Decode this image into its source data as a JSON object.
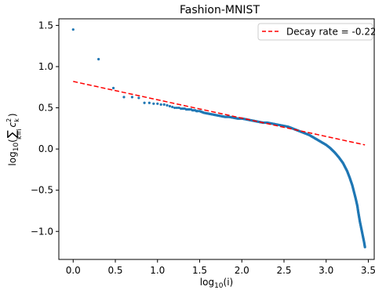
{
  "chart_data": {
    "type": "scatter",
    "title": "Fashion-MNIST",
    "xlabel_base": "log",
    "xlabel_sub": "10",
    "xlabel_arg": "(i)",
    "ylabel_base": "log",
    "ylabel_sub": "10",
    "ylabel_sum_range": "k=i",
    "ylabel_var": "c",
    "ylabel_sup": "2",
    "ylabel_var_sub": "k",
    "xlim": [
      -0.17,
      3.57
    ],
    "ylim": [
      -1.34,
      1.58
    ],
    "xticks": [
      "0.0",
      "0.5",
      "1.0",
      "1.5",
      "2.0",
      "2.5",
      "3.0",
      "3.5"
    ],
    "yticks": [
      "−1.0",
      "−0.5",
      "0.0",
      "0.5",
      "1.0",
      "1.5"
    ],
    "grid": false,
    "legend_position": "upper right",
    "series": [
      {
        "label": "Decay rate = -0.22",
        "kind": "line",
        "style": "dashed",
        "color": "#ff0000",
        "x": [
          0,
          3.46
        ],
        "y": [
          0.82,
          0.05
        ]
      }
    ],
    "scatter": {
      "color": "#1f77b4",
      "points": [
        [
          0.0,
          1.45
        ],
        [
          0.301,
          1.09
        ],
        [
          0.477,
          0.74
        ],
        [
          0.602,
          0.63
        ],
        [
          0.699,
          0.63
        ],
        [
          0.778,
          0.62
        ],
        [
          0.845,
          0.56
        ],
        [
          0.903,
          0.56
        ],
        [
          0.954,
          0.55
        ],
        [
          1.0,
          0.55
        ],
        [
          1.041,
          0.54
        ],
        [
          1.079,
          0.54
        ],
        [
          1.114,
          0.53
        ],
        [
          1.146,
          0.52
        ],
        [
          1.176,
          0.51
        ],
        [
          1.204,
          0.5
        ],
        [
          1.23,
          0.5
        ],
        [
          1.255,
          0.5
        ],
        [
          1.279,
          0.49
        ],
        [
          1.301,
          0.49
        ],
        [
          1.322,
          0.49
        ],
        [
          1.342,
          0.48
        ],
        [
          1.362,
          0.48
        ],
        [
          1.38,
          0.48
        ],
        [
          1.398,
          0.48
        ],
        [
          1.415,
          0.47
        ],
        [
          1.431,
          0.47
        ],
        [
          1.447,
          0.47
        ],
        [
          1.462,
          0.46
        ],
        [
          1.477,
          0.46
        ],
        [
          1.5,
          0.46
        ],
        [
          1.55,
          0.44
        ],
        [
          1.6,
          0.43
        ],
        [
          1.65,
          0.42
        ],
        [
          1.7,
          0.41
        ],
        [
          1.75,
          0.4
        ],
        [
          1.8,
          0.39
        ],
        [
          1.85,
          0.39
        ],
        [
          1.9,
          0.38
        ],
        [
          1.95,
          0.37
        ],
        [
          2.0,
          0.37
        ],
        [
          2.05,
          0.36
        ],
        [
          2.1,
          0.35
        ],
        [
          2.15,
          0.34
        ],
        [
          2.2,
          0.33
        ],
        [
          2.25,
          0.32
        ],
        [
          2.3,
          0.32
        ],
        [
          2.35,
          0.31
        ],
        [
          2.4,
          0.3
        ],
        [
          2.45,
          0.29
        ],
        [
          2.5,
          0.28
        ],
        [
          2.55,
          0.27
        ],
        [
          2.6,
          0.25
        ],
        [
          2.65,
          0.23
        ],
        [
          2.7,
          0.21
        ],
        [
          2.75,
          0.19
        ],
        [
          2.8,
          0.17
        ],
        [
          2.85,
          0.14
        ],
        [
          2.9,
          0.11
        ],
        [
          2.95,
          0.08
        ],
        [
          3.0,
          0.05
        ],
        [
          3.05,
          0.01
        ],
        [
          3.1,
          -0.04
        ],
        [
          3.15,
          -0.1
        ],
        [
          3.2,
          -0.17
        ],
        [
          3.25,
          -0.27
        ],
        [
          3.28,
          -0.35
        ],
        [
          3.31,
          -0.44
        ],
        [
          3.33,
          -0.52
        ],
        [
          3.35,
          -0.6
        ],
        [
          3.37,
          -0.69
        ],
        [
          3.38,
          -0.76
        ],
        [
          3.39,
          -0.82
        ],
        [
          3.4,
          -0.88
        ],
        [
          3.41,
          -0.93
        ],
        [
          3.42,
          -0.98
        ],
        [
          3.43,
          -1.03
        ],
        [
          3.44,
          -1.08
        ],
        [
          3.45,
          -1.13
        ],
        [
          3.46,
          -1.19
        ]
      ]
    }
  }
}
